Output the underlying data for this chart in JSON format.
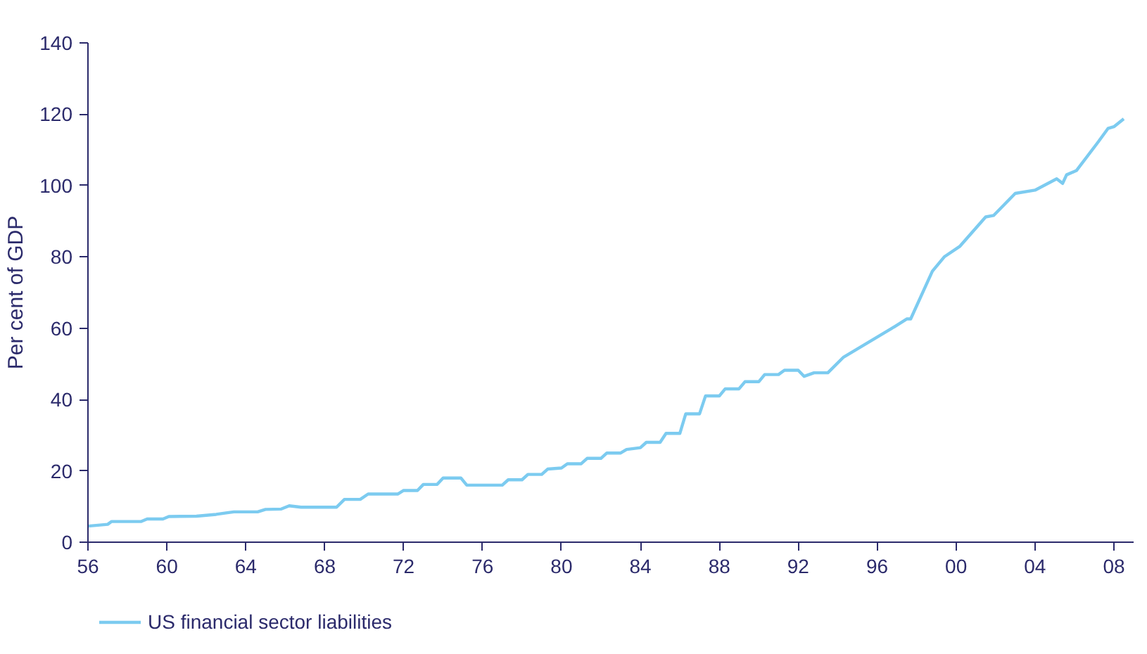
{
  "chart_data": {
    "type": "line",
    "ylabel": "Per cent of GDP",
    "xlim": [
      1956,
      2009
    ],
    "ylim": [
      0,
      140
    ],
    "xticks": [
      {
        "value": 1956,
        "label": "56"
      },
      {
        "value": 1960,
        "label": "60"
      },
      {
        "value": 1964,
        "label": "64"
      },
      {
        "value": 1968,
        "label": "68"
      },
      {
        "value": 1972,
        "label": "72"
      },
      {
        "value": 1976,
        "label": "76"
      },
      {
        "value": 1980,
        "label": "80"
      },
      {
        "value": 1984,
        "label": "84"
      },
      {
        "value": 1988,
        "label": "88"
      },
      {
        "value": 1992,
        "label": "92"
      },
      {
        "value": 1996,
        "label": "96"
      },
      {
        "value": 2000,
        "label": "00"
      },
      {
        "value": 2004,
        "label": "04"
      },
      {
        "value": 2008,
        "label": "08"
      }
    ],
    "yticks": [
      0,
      20,
      40,
      60,
      80,
      100,
      120,
      140
    ],
    "grid": false,
    "legend": "bottom left",
    "marker": "none",
    "line_style": "solid",
    "series": [
      {
        "name": "US financial sector liabilities",
        "color": "#7ccbf0",
        "x": [
          1956,
          1957,
          1957.2,
          1958.7,
          1959,
          1959.8,
          1960.1,
          1961.5,
          1962.5,
          1963,
          1963.4,
          1964.6,
          1965,
          1965.8,
          1966.2,
          1966.8,
          1968.6,
          1969,
          1969.8,
          1970.2,
          1971.7,
          1972,
          1972.7,
          1973,
          1973.7,
          1974,
          1974.9,
          1975.2,
          1977,
          1977.3,
          1978,
          1978.3,
          1979,
          1979.3,
          1980,
          1980.3,
          1981,
          1981.3,
          1982,
          1982.3,
          1983,
          1983.3,
          1984,
          1984.3,
          1985,
          1985.3,
          1986,
          1986.3,
          1987,
          1987.3,
          1988,
          1988.3,
          1989,
          1989.3,
          1990,
          1990.3,
          1991,
          1991.3,
          1992,
          1992.3,
          1992.8,
          1993.5,
          1994.3,
          1996.7,
          1997.5,
          1997.7,
          1998.8,
          1999.4,
          2000.2,
          2001.5,
          2001.9,
          2003.0,
          2004.0,
          2005.1,
          2005.4,
          2005.6,
          2006.1,
          2007.2,
          2007.7,
          2008.0,
          2008.5
        ],
        "values": [
          4.5,
          5,
          5.8,
          5.8,
          6.5,
          6.5,
          7.2,
          7.3,
          7.8,
          8.2,
          8.5,
          8.5,
          9.2,
          9.3,
          10.2,
          9.8,
          9.8,
          12,
          12,
          13.5,
          13.5,
          14.5,
          14.5,
          16.2,
          16.2,
          18,
          18,
          16,
          16,
          17.5,
          17.5,
          19,
          19,
          20.5,
          20.8,
          22,
          22,
          23.5,
          23.5,
          25,
          25,
          26,
          26.5,
          28,
          28,
          30.5,
          30.5,
          36,
          36,
          41,
          41,
          43,
          43,
          45,
          45,
          47,
          47,
          48.2,
          48.2,
          46.5,
          47.5,
          47.5,
          51.9,
          59.8,
          62.6,
          62.6,
          76,
          80,
          83,
          91.2,
          91.6,
          97.8,
          98.7,
          101.9,
          100.6,
          103,
          104.2,
          112.2,
          116,
          116.5,
          118.7
        ]
      }
    ]
  }
}
